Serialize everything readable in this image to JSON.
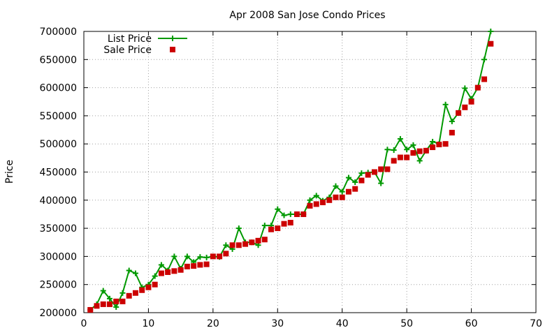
{
  "chart_data": {
    "type": "line",
    "title": "Apr 2008 San Jose Condo Prices",
    "xlabel": "",
    "ylabel": "Price",
    "xlim": [
      0,
      70
    ],
    "ylim": [
      200000,
      700000
    ],
    "x_ticks": [
      0,
      10,
      20,
      30,
      40,
      50,
      60,
      70
    ],
    "y_ticks": [
      200000,
      250000,
      300000,
      350000,
      400000,
      450000,
      500000,
      550000,
      600000,
      650000,
      700000
    ],
    "grid": true,
    "legend_position": "top-left",
    "series": [
      {
        "name": "List Price",
        "style": "line-plus",
        "color": "#009900",
        "x": [
          1,
          2,
          3,
          4,
          5,
          6,
          7,
          8,
          9,
          10,
          11,
          12,
          13,
          14,
          15,
          16,
          17,
          18,
          19,
          20,
          21,
          22,
          23,
          24,
          25,
          26,
          27,
          28,
          29,
          30,
          31,
          32,
          33,
          34,
          35,
          36,
          37,
          38,
          39,
          40,
          41,
          42,
          43,
          44,
          45,
          46,
          47,
          48,
          49,
          50,
          51,
          52,
          53,
          54,
          55,
          56,
          57,
          58,
          59,
          60,
          61,
          62,
          63
        ],
        "y": [
          205000,
          215000,
          239000,
          225000,
          210000,
          235000,
          275000,
          270000,
          245000,
          250000,
          265000,
          285000,
          275000,
          300000,
          278000,
          300000,
          290000,
          299000,
          298000,
          300000,
          299000,
          320000,
          313000,
          350000,
          325000,
          325000,
          320000,
          355000,
          355000,
          384000,
          373000,
          375000,
          375000,
          375000,
          400000,
          408000,
          399000,
          405000,
          425000,
          415000,
          440000,
          432000,
          448000,
          449000,
          450000,
          430000,
          490000,
          489000,
          509000,
          490000,
          498000,
          470000,
          488000,
          504000,
          500000,
          570000,
          540000,
          555000,
          599000,
          580000,
          600000,
          650000,
          700000
        ]
      },
      {
        "name": "Sale Price",
        "style": "square",
        "color": "#cc0000",
        "x": [
          1,
          2,
          3,
          4,
          5,
          6,
          7,
          8,
          9,
          10,
          11,
          12,
          13,
          14,
          15,
          16,
          17,
          18,
          19,
          20,
          21,
          22,
          23,
          24,
          25,
          26,
          27,
          28,
          29,
          30,
          31,
          32,
          33,
          34,
          35,
          36,
          37,
          38,
          39,
          40,
          41,
          42,
          43,
          44,
          45,
          46,
          47,
          48,
          49,
          50,
          51,
          52,
          53,
          54,
          55,
          56,
          57,
          58,
          59,
          60,
          61,
          62,
          63
        ],
        "y": [
          205000,
          212000,
          215000,
          215000,
          220000,
          220000,
          230000,
          235000,
          240000,
          245000,
          250000,
          270000,
          272000,
          274000,
          276000,
          282000,
          283000,
          285000,
          286000,
          300000,
          300000,
          305000,
          320000,
          320000,
          322000,
          325000,
          328000,
          330000,
          348000,
          350000,
          358000,
          360000,
          375000,
          375000,
          390000,
          393000,
          396000,
          400000,
          405000,
          405000,
          415000,
          420000,
          435000,
          445000,
          450000,
          455000,
          455000,
          470000,
          476000,
          476000,
          484000,
          487000,
          488000,
          494000,
          499000,
          500000,
          520000,
          555000,
          565000,
          575000,
          600000,
          615000,
          678000
        ]
      }
    ]
  }
}
